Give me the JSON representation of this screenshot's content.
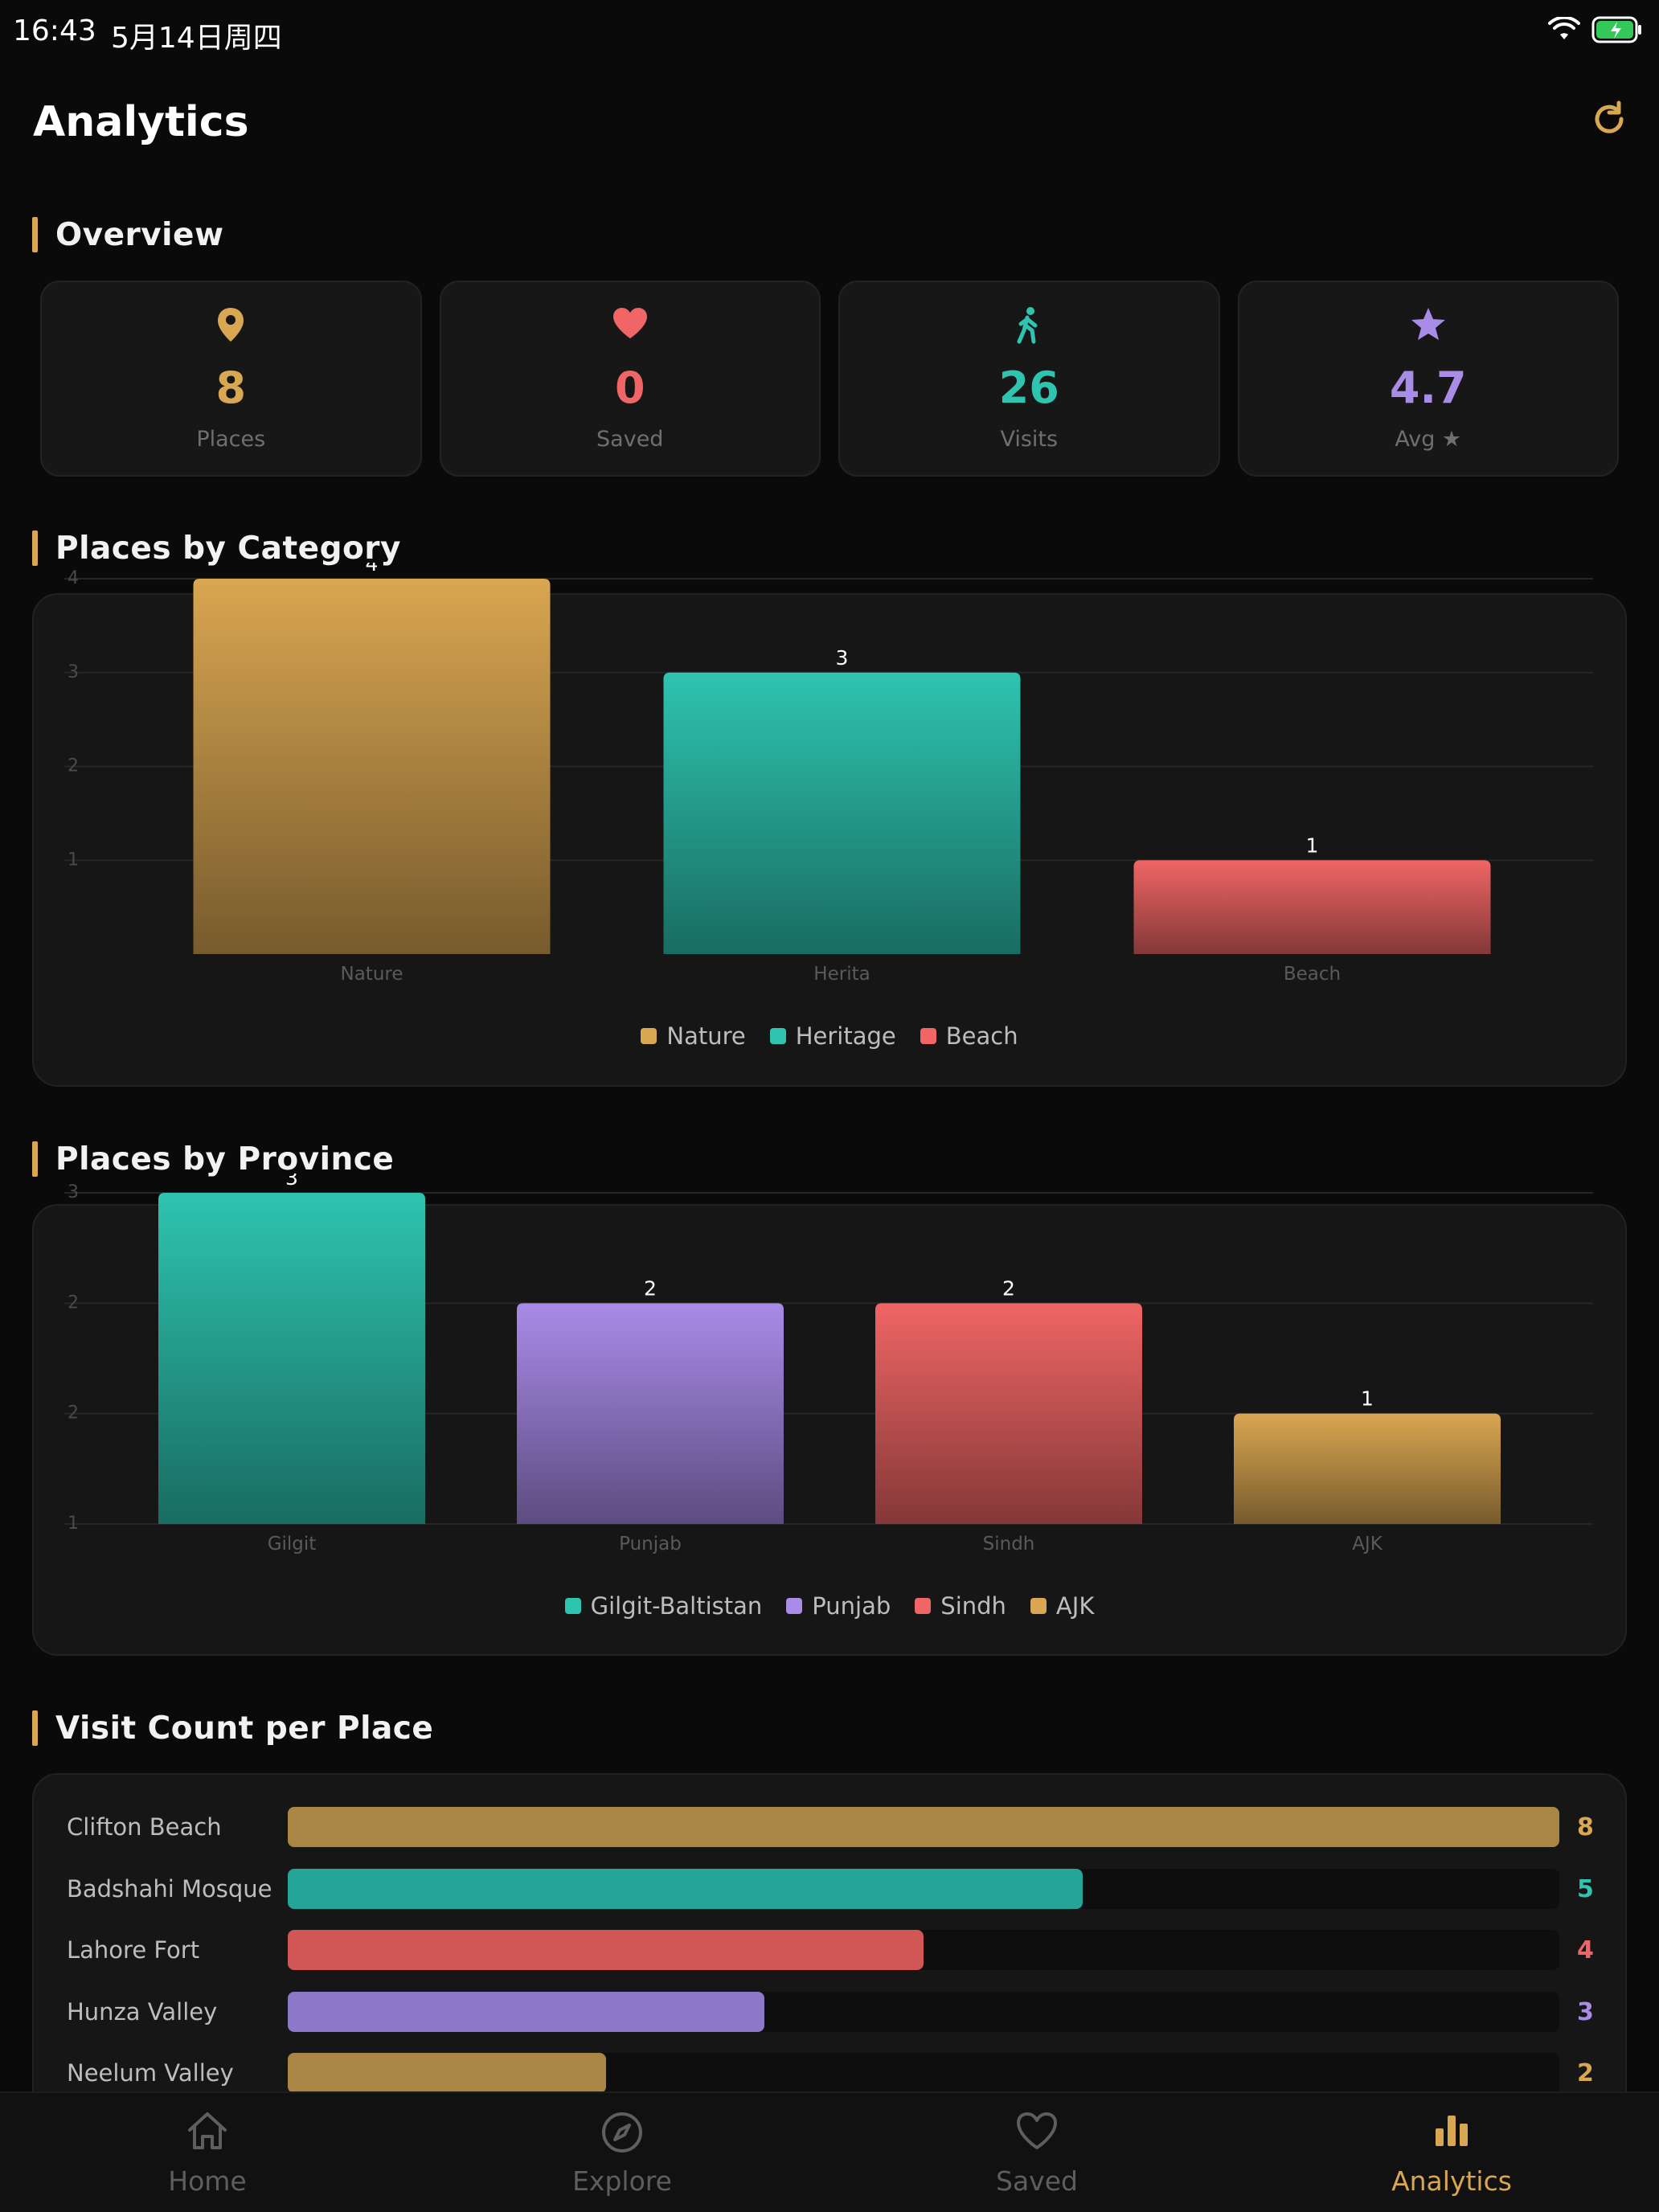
{
  "status_bar": {
    "time": "16:43",
    "date": "5月14日周四"
  },
  "header": {
    "title": "Analytics"
  },
  "overview": {
    "title": "Overview",
    "stats": [
      {
        "value": "8",
        "label": "Places",
        "icon": "map-pin-icon",
        "color": "#d9a651"
      },
      {
        "value": "0",
        "label": "Saved",
        "icon": "heart-icon",
        "color": "#f06565"
      },
      {
        "value": "26",
        "label": "Visits",
        "icon": "walking-icon",
        "color": "#2ec4b0"
      },
      {
        "value": "4.7",
        "label": "Avg ★",
        "icon": "star-icon",
        "color": "#a98be8"
      }
    ]
  },
  "category_section": {
    "title": "Places by Category"
  },
  "province_section": {
    "title": "Places by Province"
  },
  "chart_data": [
    {
      "type": "bar",
      "categories": [
        "Nature",
        "Herita",
        "Beach"
      ],
      "values": [
        4,
        3,
        1
      ],
      "y_ticks": [
        "4",
        "3",
        "2",
        "1"
      ],
      "ylim": [
        0,
        4
      ],
      "legend": [
        "Nature",
        "Heritage",
        "Beach"
      ],
      "colors": [
        "#d9a651",
        "#2ec4b0",
        "#f06565"
      ],
      "grid": true
    },
    {
      "type": "bar",
      "categories": [
        "Gilgit",
        "Punjab",
        "Sindh",
        "AJK"
      ],
      "values": [
        3,
        2,
        2,
        1
      ],
      "y_ticks": [
        "3",
        "2",
        "2",
        "1"
      ],
      "ylim": [
        0,
        3
      ],
      "legend": [
        "Gilgit-Baltistan",
        "Punjab",
        "Sindh",
        "AJK"
      ],
      "colors": [
        "#2ec4b0",
        "#a98be8",
        "#f06565",
        "#d9a651"
      ],
      "grid": true
    }
  ],
  "visits_section": {
    "title": "Visit Count per Place",
    "max": 8,
    "rows": [
      {
        "name": "Clifton Beach",
        "count": 8,
        "color": "#a98644",
        "text_color": "#d9a651"
      },
      {
        "name": "Badshahi Mosque",
        "count": 5,
        "color": "#25a597",
        "text_color": "#2ec4b0"
      },
      {
        "name": "Lahore Fort",
        "count": 4,
        "color": "#d15757",
        "text_color": "#f06565"
      },
      {
        "name": "Hunza Valley",
        "count": 3,
        "color": "#8b78c7",
        "text_color": "#a98be8"
      },
      {
        "name": "Neelum Valley",
        "count": 2,
        "color": "#a98644",
        "text_color": "#d9a651"
      }
    ]
  },
  "tab_bar": {
    "tabs": [
      {
        "label": "Home",
        "icon": "home-icon"
      },
      {
        "label": "Explore",
        "icon": "compass-icon"
      },
      {
        "label": "Saved",
        "icon": "heart-outline-icon"
      },
      {
        "label": "Analytics",
        "icon": "bar-chart-icon",
        "active": true
      }
    ]
  }
}
